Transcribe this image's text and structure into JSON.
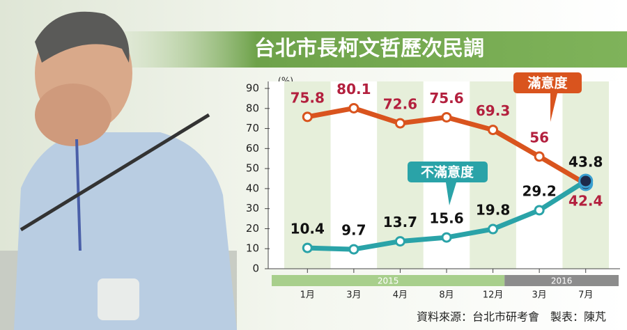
{
  "chart_data": {
    "type": "line",
    "title": "台北市長柯文哲歷次民調",
    "y_label": "(%)",
    "categories": [
      "1月",
      "3月",
      "4月",
      "8月",
      "12月",
      "3月",
      "7月"
    ],
    "x_groups": [
      {
        "label": "2015",
        "span": 5,
        "color": "#a8cf8c"
      },
      {
        "label": "2016",
        "span": 2,
        "color": "#8c8c8c"
      }
    ],
    "series": [
      {
        "name": "滿意度",
        "color": "#d9541e",
        "label_color": "#b3203e",
        "values": [
          75.8,
          80.1,
          72.6,
          75.6,
          69.3,
          56,
          42.4
        ]
      },
      {
        "name": "不滿意度",
        "color": "#2aa3a8",
        "label_color": "#111111",
        "values": [
          10.4,
          9.7,
          13.7,
          15.6,
          19.8,
          29.2,
          43.8
        ]
      }
    ],
    "ylim": [
      0,
      90
    ],
    "yticks": [
      0,
      10,
      20,
      30,
      40,
      50,
      60,
      70,
      80,
      90
    ],
    "source": "資料來源：台北市研考會　製表：陳芃"
  }
}
